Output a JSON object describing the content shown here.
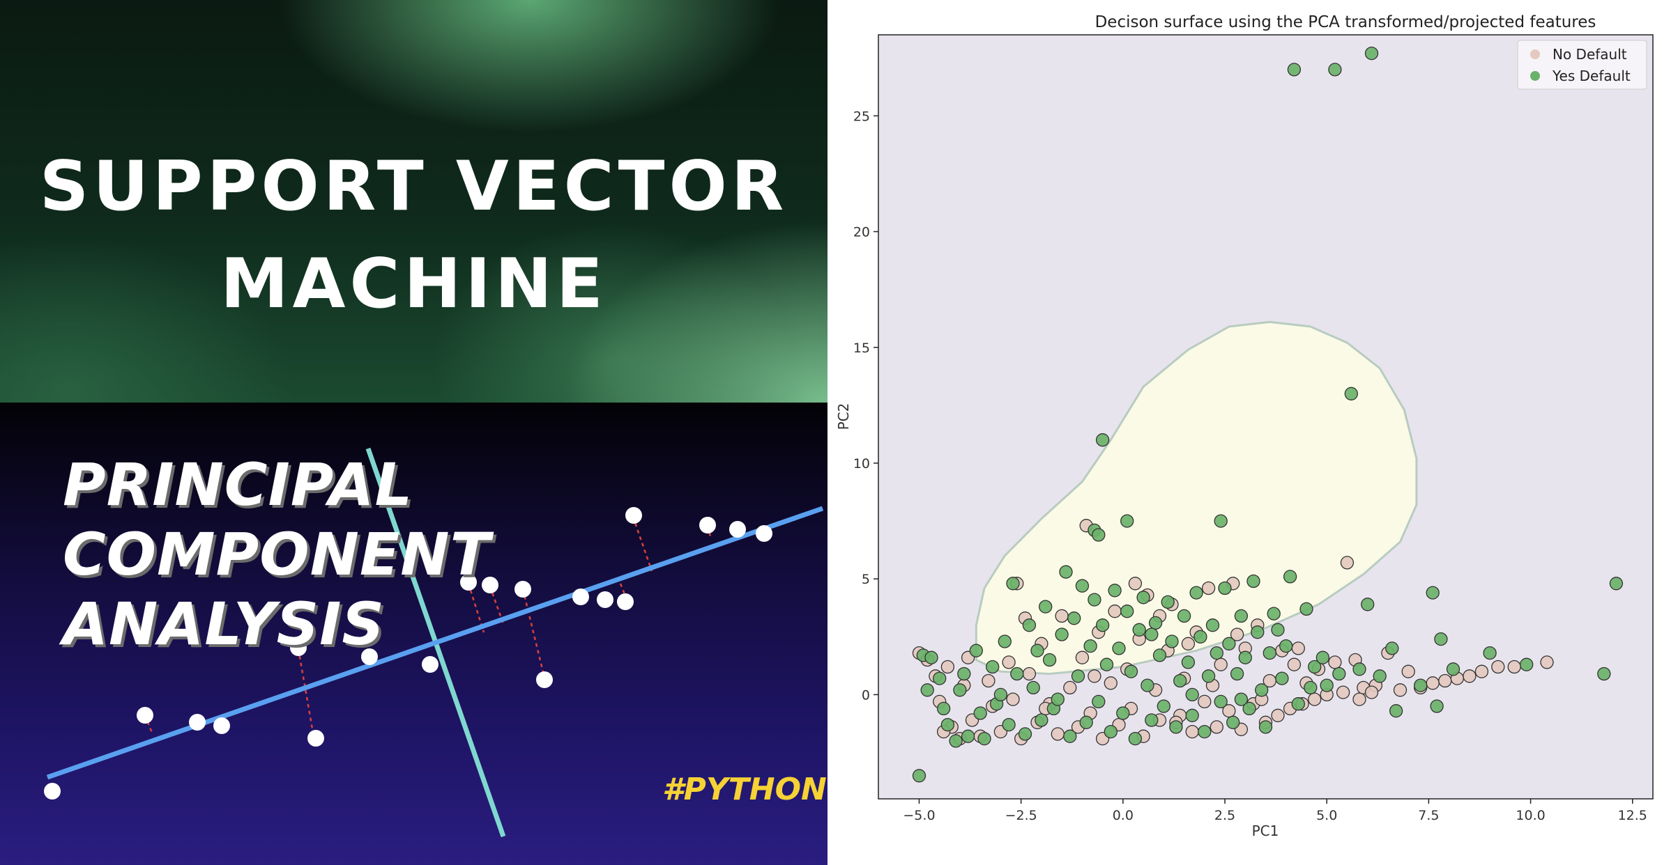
{
  "thumbnail": {
    "svm_title_line1": "SUPPORT VECTOR",
    "svm_title_line2": "MACHINE",
    "pca_title_lines": [
      "PRINCIPAL",
      "COMPONENT",
      "ANALYSIS"
    ],
    "pca_tag": "#PYTHON",
    "colors": {
      "svm_green": "#4f9e6a",
      "pca_navy": "#231a73",
      "pca_line": "#5aa0f0",
      "pca_perp_line": "#7fd8cf",
      "tag_yellow": "#f6d234"
    }
  },
  "chart_data": {
    "type": "scatter",
    "title": "Decison surface using the PCA transformed/projected features",
    "xlabel": "PC1",
    "ylabel": "PC2",
    "xlim": [
      -6.0,
      13.0
    ],
    "ylim": [
      -4.5,
      28.5
    ],
    "xticks": [
      -5.0,
      -2.5,
      0.0,
      2.5,
      5.0,
      7.5,
      10.0,
      12.5
    ],
    "xtick_labels": [
      "−5.0",
      "−2.5",
      "0.0",
      "2.5",
      "5.0",
      "7.5",
      "10.0",
      "12.5"
    ],
    "yticks": [
      0,
      5,
      10,
      15,
      20,
      25
    ],
    "ytick_labels": [
      "0",
      "5",
      "10",
      "15",
      "20",
      "25"
    ],
    "grid": false,
    "legend_position": "top-right",
    "background_color": "#e8e4ee",
    "decision_region_color": "#fafae6",
    "decision_region_edge_color": "#b8ccc0",
    "decision_region": [
      [
        -3.6,
        1.5
      ],
      [
        -3.6,
        3.0
      ],
      [
        -3.4,
        4.6
      ],
      [
        -2.9,
        6.0
      ],
      [
        -2.0,
        7.6
      ],
      [
        -1.0,
        9.2
      ],
      [
        -0.3,
        11.0
      ],
      [
        0.5,
        13.3
      ],
      [
        1.6,
        14.9
      ],
      [
        2.6,
        15.9
      ],
      [
        3.6,
        16.1
      ],
      [
        4.6,
        15.9
      ],
      [
        5.5,
        15.2
      ],
      [
        6.3,
        14.1
      ],
      [
        6.9,
        12.3
      ],
      [
        7.2,
        10.2
      ],
      [
        7.2,
        8.2
      ],
      [
        6.8,
        6.6
      ],
      [
        5.9,
        5.2
      ],
      [
        4.8,
        3.9
      ],
      [
        3.4,
        2.8
      ],
      [
        1.8,
        1.9
      ],
      [
        0.0,
        1.2
      ],
      [
        -1.8,
        0.9
      ],
      [
        -3.0,
        1.0
      ]
    ],
    "series": [
      {
        "name": "No Default",
        "color": "#e3c9bf",
        "points": [
          [
            -5.0,
            1.8
          ],
          [
            -4.8,
            1.5
          ],
          [
            -4.6,
            0.8
          ],
          [
            -4.5,
            -0.3
          ],
          [
            -4.3,
            1.2
          ],
          [
            -4.2,
            -1.4
          ],
          [
            -4.0,
            -1.9
          ],
          [
            -3.9,
            0.4
          ],
          [
            -3.7,
            -1.1
          ],
          [
            -3.5,
            -1.8
          ],
          [
            -3.3,
            0.6
          ],
          [
            -3.2,
            -0.5
          ],
          [
            -3.0,
            -1.6
          ],
          [
            -2.8,
            1.4
          ],
          [
            -2.7,
            -0.2
          ],
          [
            -2.6,
            4.8
          ],
          [
            -2.5,
            -1.9
          ],
          [
            -2.3,
            0.9
          ],
          [
            -2.1,
            -1.2
          ],
          [
            -2.0,
            2.2
          ],
          [
            -1.8,
            -0.4
          ],
          [
            -1.6,
            -1.7
          ],
          [
            -1.5,
            3.4
          ],
          [
            -1.3,
            0.3
          ],
          [
            -1.1,
            -1.4
          ],
          [
            -1.0,
            1.6
          ],
          [
            -0.9,
            7.3
          ],
          [
            -0.8,
            -0.8
          ],
          [
            -0.6,
            2.7
          ],
          [
            -0.5,
            -1.9
          ],
          [
            -0.3,
            0.5
          ],
          [
            -0.2,
            3.6
          ],
          [
            -0.1,
            -1.3
          ],
          [
            0.1,
            1.1
          ],
          [
            0.2,
            -0.6
          ],
          [
            0.4,
            2.4
          ],
          [
            0.5,
            -1.8
          ],
          [
            0.6,
            4.3
          ],
          [
            0.8,
            0.2
          ],
          [
            0.9,
            -1.1
          ],
          [
            1.1,
            1.9
          ],
          [
            1.2,
            3.9
          ],
          [
            1.4,
            -0.9
          ],
          [
            1.5,
            0.7
          ],
          [
            1.7,
            -1.6
          ],
          [
            1.8,
            2.7
          ],
          [
            2.0,
            -0.3
          ],
          [
            2.1,
            4.6
          ],
          [
            2.3,
            -1.4
          ],
          [
            2.4,
            1.3
          ],
          [
            2.6,
            -0.7
          ],
          [
            2.7,
            4.8
          ],
          [
            2.9,
            -1.5
          ],
          [
            3.0,
            2.0
          ],
          [
            3.2,
            -0.4
          ],
          [
            3.3,
            3.0
          ],
          [
            3.5,
            -1.2
          ],
          [
            3.6,
            0.6
          ],
          [
            3.8,
            -0.9
          ],
          [
            3.9,
            1.9
          ],
          [
            4.1,
            -0.6
          ],
          [
            4.2,
            1.3
          ],
          [
            4.4,
            -0.4
          ],
          [
            4.5,
            0.5
          ],
          [
            4.7,
            -0.2
          ],
          [
            4.8,
            1.1
          ],
          [
            5.0,
            0.0
          ],
          [
            5.2,
            1.4
          ],
          [
            5.4,
            0.1
          ],
          [
            5.5,
            5.7
          ],
          [
            5.7,
            1.5
          ],
          [
            5.9,
            0.3
          ],
          [
            6.2,
            0.4
          ],
          [
            6.5,
            1.8
          ],
          [
            6.8,
            0.2
          ],
          [
            7.0,
            1.0
          ],
          [
            7.3,
            0.3
          ],
          [
            7.6,
            0.5
          ],
          [
            7.9,
            0.6
          ],
          [
            8.2,
            0.7
          ],
          [
            8.5,
            0.8
          ],
          [
            8.8,
            1.0
          ],
          [
            9.2,
            1.2
          ],
          [
            9.6,
            1.2
          ],
          [
            10.4,
            1.4
          ],
          [
            0.3,
            4.8
          ],
          [
            1.6,
            2.2
          ],
          [
            2.8,
            2.6
          ],
          [
            -4.4,
            -1.6
          ],
          [
            -3.8,
            1.6
          ],
          [
            -2.4,
            3.3
          ],
          [
            0.9,
            3.4
          ],
          [
            2.2,
            0.4
          ],
          [
            3.4,
            -0.2
          ],
          [
            4.3,
            2.0
          ],
          [
            5.8,
            -0.2
          ],
          [
            6.1,
            0.1
          ],
          [
            -1.9,
            -0.6
          ],
          [
            -0.7,
            0.8
          ],
          [
            1.3,
            -1.2
          ]
        ]
      },
      {
        "name": "Yes Default",
        "color": "#6ab26a",
        "points": [
          [
            4.2,
            27.0
          ],
          [
            5.2,
            27.0
          ],
          [
            6.1,
            27.7
          ],
          [
            5.6,
            13.0
          ],
          [
            -0.5,
            11.0
          ],
          [
            0.1,
            7.5
          ],
          [
            2.4,
            7.5
          ],
          [
            -0.7,
            7.1
          ],
          [
            -0.6,
            6.9
          ],
          [
            12.1,
            4.8
          ],
          [
            11.8,
            0.9
          ],
          [
            7.6,
            4.4
          ],
          [
            6.0,
            3.9
          ],
          [
            7.8,
            2.4
          ],
          [
            9.9,
            1.3
          ],
          [
            9.0,
            1.8
          ],
          [
            -5.0,
            -3.5
          ],
          [
            -4.9,
            1.7
          ],
          [
            -4.7,
            1.6
          ],
          [
            -4.5,
            0.7
          ],
          [
            -4.4,
            -0.6
          ],
          [
            -4.3,
            -1.3
          ],
          [
            -4.1,
            -2.0
          ],
          [
            -4.0,
            0.2
          ],
          [
            -3.8,
            -1.8
          ],
          [
            -3.6,
            1.9
          ],
          [
            -3.5,
            -0.8
          ],
          [
            -3.4,
            -1.9
          ],
          [
            -3.2,
            1.2
          ],
          [
            -3.1,
            -0.4
          ],
          [
            -2.9,
            2.3
          ],
          [
            -2.8,
            -1.3
          ],
          [
            -2.7,
            4.8
          ],
          [
            -2.6,
            0.9
          ],
          [
            -2.4,
            -1.7
          ],
          [
            -2.3,
            3.0
          ],
          [
            -2.2,
            0.3
          ],
          [
            -2.0,
            -1.1
          ],
          [
            -1.9,
            3.8
          ],
          [
            -1.8,
            1.5
          ],
          [
            -1.7,
            -0.6
          ],
          [
            -1.5,
            2.6
          ],
          [
            -1.4,
            5.3
          ],
          [
            -1.3,
            -1.8
          ],
          [
            -1.2,
            3.3
          ],
          [
            -1.1,
            0.8
          ],
          [
            -1.0,
            4.7
          ],
          [
            -0.9,
            -1.2
          ],
          [
            -0.8,
            2.1
          ],
          [
            -0.7,
            4.1
          ],
          [
            -0.6,
            -0.3
          ],
          [
            -0.5,
            3.0
          ],
          [
            -0.4,
            1.3
          ],
          [
            -0.3,
            -1.6
          ],
          [
            -0.2,
            4.5
          ],
          [
            -0.1,
            2.0
          ],
          [
            0.0,
            -0.8
          ],
          [
            0.1,
            3.6
          ],
          [
            0.2,
            1.0
          ],
          [
            0.3,
            -1.9
          ],
          [
            0.4,
            2.8
          ],
          [
            0.5,
            4.2
          ],
          [
            0.6,
            0.4
          ],
          [
            0.7,
            -1.1
          ],
          [
            0.8,
            3.1
          ],
          [
            0.9,
            1.7
          ],
          [
            1.0,
            -0.5
          ],
          [
            1.1,
            4.0
          ],
          [
            1.2,
            2.3
          ],
          [
            1.3,
            -1.4
          ],
          [
            1.4,
            0.6
          ],
          [
            1.5,
            3.4
          ],
          [
            1.6,
            1.4
          ],
          [
            1.7,
            -0.9
          ],
          [
            1.8,
            4.4
          ],
          [
            1.9,
            2.5
          ],
          [
            2.0,
            -1.6
          ],
          [
            2.1,
            0.8
          ],
          [
            2.2,
            3.0
          ],
          [
            2.3,
            1.8
          ],
          [
            2.4,
            -0.3
          ],
          [
            2.5,
            4.6
          ],
          [
            2.6,
            2.2
          ],
          [
            2.7,
            -1.2
          ],
          [
            2.8,
            0.9
          ],
          [
            2.9,
            3.4
          ],
          [
            3.0,
            1.6
          ],
          [
            3.1,
            -0.6
          ],
          [
            3.2,
            4.9
          ],
          [
            3.3,
            2.7
          ],
          [
            3.4,
            0.2
          ],
          [
            3.5,
            -1.4
          ],
          [
            3.6,
            1.8
          ],
          [
            3.7,
            3.5
          ],
          [
            3.9,
            0.7
          ],
          [
            4.0,
            2.1
          ],
          [
            4.1,
            5.1
          ],
          [
            4.3,
            -0.4
          ],
          [
            4.5,
            3.7
          ],
          [
            4.6,
            0.3
          ],
          [
            4.7,
            1.2
          ],
          [
            5.0,
            0.4
          ],
          [
            5.3,
            0.9
          ],
          [
            5.8,
            1.1
          ],
          [
            6.3,
            0.8
          ],
          [
            6.7,
            -0.7
          ],
          [
            7.3,
            0.4
          ],
          [
            7.7,
            -0.5
          ],
          [
            -4.8,
            0.2
          ],
          [
            -3.9,
            0.9
          ],
          [
            -3.0,
            0.0
          ],
          [
            -2.1,
            1.9
          ],
          [
            -1.6,
            -0.2
          ],
          [
            0.7,
            2.6
          ],
          [
            1.7,
            0.0
          ],
          [
            2.9,
            -0.2
          ],
          [
            3.8,
            2.8
          ],
          [
            4.9,
            1.6
          ],
          [
            6.6,
            2.0
          ],
          [
            8.1,
            1.1
          ]
        ]
      }
    ]
  }
}
